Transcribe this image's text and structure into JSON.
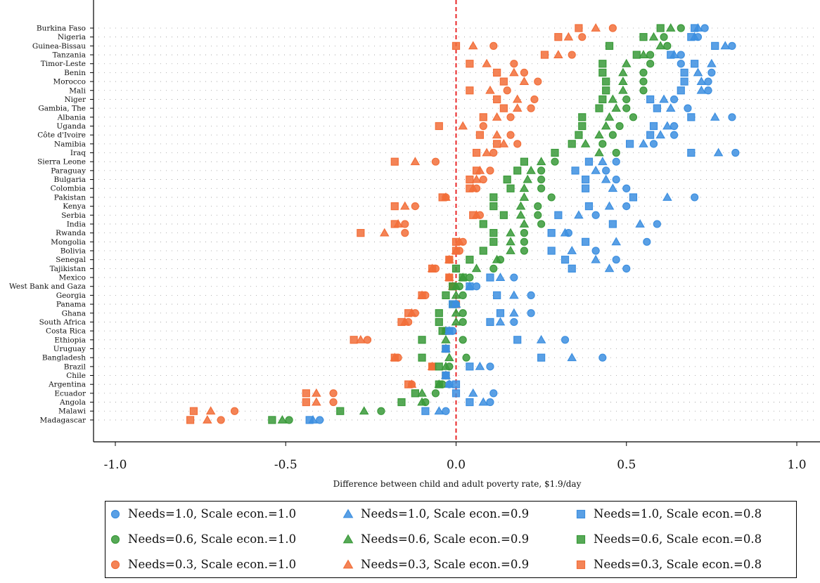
{
  "chart_data": {
    "type": "scatter",
    "title": "",
    "xlabel": "Difference between child and adult poverty rate, $1.9/day",
    "ylabel": "",
    "xlim": [
      -1.0,
      1.0
    ],
    "xticks": [
      "-1.0",
      "-0.5",
      "0.0",
      "0.5",
      "1.0"
    ],
    "reference_line": {
      "x": 0.0,
      "style": "dashed",
      "color": "#e8282a"
    },
    "grid": "dotted horizontal",
    "legend_position": "bottom",
    "categories": [
      "Burkina Faso",
      "Nigeria",
      "Guinea-Bissau",
      "Tanzania",
      "Timor-Leste",
      "Benin",
      "Morocco",
      "Mali",
      "Niger",
      "Gambia, The",
      "Albania",
      "Uganda",
      "Côte d'Ivoire",
      "Namibia",
      "Iraq",
      "Sierra Leone",
      "Paraguay",
      "Bulgaria",
      "Colombia",
      "Pakistan",
      "Kenya",
      "Serbia",
      "India",
      "Rwanda",
      "Mongolia",
      "Bolivia",
      "Senegal",
      "Tajikistan",
      "Mexico",
      "West Bank and Gaza",
      "Georgia",
      "Panama",
      "Ghana",
      "South Africa",
      "Costa Rica",
      "Ethiopia",
      "Uruguay",
      "Bangladesh",
      "Brazil",
      "Chile",
      "Argentina",
      "Ecuador",
      "Angola",
      "Malawi",
      "Madagascar"
    ],
    "series": [
      {
        "name": "Needs=1.0, Scale econ.=1.0",
        "marker": "circle",
        "color": "#3d8fe0",
        "values": [
          0.73,
          0.71,
          0.81,
          0.66,
          0.66,
          0.75,
          0.74,
          0.74,
          0.64,
          0.68,
          0.81,
          0.64,
          0.64,
          0.58,
          0.82,
          0.47,
          0.44,
          0.47,
          0.5,
          0.7,
          0.5,
          0.41,
          0.59,
          0.33,
          0.56,
          0.41,
          0.47,
          0.5,
          0.17,
          0.06,
          0.22,
          0.0,
          0.22,
          0.17,
          -0.01,
          0.32,
          -0.03,
          0.43,
          0.1,
          -0.03,
          -0.02,
          0.11,
          0.1,
          -0.03,
          -0.4
        ]
      },
      {
        "name": "Needs=1.0, Scale econ.=0.9",
        "marker": "triangle",
        "color": "#3d8fe0",
        "values": [
          0.71,
          0.7,
          0.79,
          0.64,
          0.75,
          0.71,
          0.72,
          0.72,
          0.61,
          0.63,
          0.76,
          0.62,
          0.6,
          0.55,
          0.77,
          0.43,
          0.41,
          0.44,
          0.46,
          0.62,
          0.45,
          0.36,
          0.54,
          0.32,
          0.47,
          0.34,
          0.41,
          0.45,
          0.13,
          0.04,
          0.17,
          0.0,
          0.17,
          0.13,
          -0.02,
          0.25,
          -0.03,
          0.34,
          0.07,
          -0.03,
          -0.02,
          0.05,
          0.08,
          -0.05,
          -0.42
        ]
      },
      {
        "name": "Needs=1.0, Scale econ.=0.8",
        "marker": "square",
        "color": "#3d8fe0",
        "values": [
          0.7,
          0.69,
          0.76,
          0.63,
          0.7,
          0.67,
          0.67,
          0.66,
          0.57,
          0.59,
          0.69,
          0.58,
          0.57,
          0.51,
          0.69,
          0.39,
          0.35,
          0.38,
          0.38,
          0.52,
          0.39,
          0.3,
          0.46,
          0.28,
          0.38,
          0.28,
          0.32,
          0.34,
          0.1,
          0.04,
          0.12,
          -0.01,
          0.13,
          0.1,
          -0.02,
          0.18,
          -0.03,
          0.25,
          0.04,
          -0.03,
          0.0,
          0.0,
          0.04,
          -0.09,
          -0.43
        ]
      },
      {
        "name": "Needs=0.6, Scale econ.=1.0",
        "marker": "circle",
        "color": "#3a9a3a",
        "values": [
          0.66,
          0.61,
          0.62,
          0.57,
          0.57,
          0.55,
          0.55,
          0.55,
          0.5,
          0.5,
          0.52,
          0.48,
          0.46,
          0.43,
          0.47,
          0.29,
          0.25,
          0.25,
          0.25,
          0.28,
          0.24,
          0.24,
          0.25,
          0.2,
          0.2,
          0.2,
          0.13,
          0.11,
          0.04,
          0.01,
          0.02,
          0.0,
          0.02,
          0.02,
          -0.03,
          0.02,
          -0.03,
          0.03,
          -0.02,
          -0.03,
          -0.04,
          -0.06,
          -0.09,
          -0.22,
          -0.49
        ]
      },
      {
        "name": "Needs=0.6, Scale econ.=0.9",
        "marker": "triangle",
        "color": "#3a9a3a",
        "values": [
          0.63,
          0.58,
          0.6,
          0.55,
          0.5,
          0.49,
          0.49,
          0.49,
          0.46,
          0.47,
          0.45,
          0.44,
          0.42,
          0.38,
          0.42,
          0.25,
          0.22,
          0.21,
          0.2,
          0.2,
          0.19,
          0.19,
          0.2,
          0.16,
          0.16,
          0.16,
          0.12,
          0.06,
          0.02,
          0.0,
          0.0,
          0.0,
          0.0,
          0.0,
          -0.03,
          -0.03,
          -0.03,
          -0.02,
          -0.03,
          -0.03,
          -0.05,
          -0.1,
          -0.1,
          -0.27,
          -0.51
        ]
      },
      {
        "name": "Needs=0.6, Scale econ.=0.8",
        "marker": "square",
        "color": "#3a9a3a",
        "values": [
          0.6,
          0.55,
          0.45,
          0.53,
          0.43,
          0.43,
          0.44,
          0.44,
          0.43,
          0.42,
          0.37,
          0.37,
          0.36,
          0.34,
          0.29,
          0.2,
          0.18,
          0.15,
          0.16,
          0.11,
          0.11,
          0.14,
          0.08,
          0.11,
          0.11,
          0.08,
          0.04,
          0.0,
          0.02,
          -0.01,
          -0.03,
          -0.01,
          -0.05,
          -0.05,
          -0.04,
          -0.1,
          -0.03,
          -0.1,
          -0.05,
          -0.03,
          -0.05,
          -0.12,
          -0.16,
          -0.34,
          -0.54
        ]
      },
      {
        "name": "Needs=0.3, Scale econ.=1.0",
        "marker": "circle",
        "color": "#f26f3a",
        "values": [
          0.46,
          0.37,
          0.11,
          0.34,
          0.17,
          0.2,
          0.24,
          0.15,
          0.23,
          0.22,
          0.16,
          0.08,
          0.16,
          0.18,
          0.11,
          -0.06,
          0.1,
          0.08,
          0.06,
          -0.03,
          -0.12,
          0.07,
          -0.15,
          -0.15,
          0.02,
          0.01,
          -0.02,
          -0.06,
          -0.02,
          -0.01,
          -0.09,
          0.0,
          -0.12,
          -0.14,
          -0.03,
          -0.26,
          -0.03,
          -0.17,
          -0.07,
          -0.03,
          -0.13,
          -0.36,
          -0.36,
          -0.65,
          -0.69
        ]
      },
      {
        "name": "Needs=0.3, Scale econ.=0.9",
        "marker": "triangle",
        "color": "#f26f3a",
        "values": [
          0.41,
          0.33,
          0.05,
          0.3,
          0.09,
          0.17,
          0.2,
          0.1,
          0.18,
          0.18,
          0.12,
          0.02,
          0.12,
          0.14,
          0.09,
          -0.12,
          0.07,
          0.06,
          0.05,
          -0.03,
          -0.15,
          0.06,
          -0.17,
          -0.21,
          0.01,
          0.0,
          -0.02,
          -0.07,
          -0.02,
          -0.01,
          -0.1,
          0.0,
          -0.13,
          -0.15,
          -0.03,
          -0.28,
          -0.03,
          -0.18,
          -0.07,
          -0.03,
          -0.13,
          -0.41,
          -0.41,
          -0.72,
          -0.73
        ]
      },
      {
        "name": "Needs=0.3, Scale econ.=0.8",
        "marker": "square",
        "color": "#f26f3a",
        "values": [
          0.36,
          0.3,
          0.0,
          0.26,
          0.04,
          0.12,
          0.14,
          0.04,
          0.12,
          0.14,
          0.08,
          -0.05,
          0.07,
          0.12,
          0.06,
          -0.18,
          0.06,
          0.04,
          0.04,
          -0.04,
          -0.18,
          0.05,
          -0.18,
          -0.28,
          0.0,
          0.0,
          -0.02,
          -0.07,
          -0.02,
          -0.01,
          -0.1,
          0.0,
          -0.14,
          -0.16,
          -0.03,
          -0.3,
          -0.03,
          -0.18,
          -0.07,
          -0.03,
          -0.14,
          -0.44,
          -0.44,
          -0.77,
          -0.78
        ]
      }
    ]
  }
}
